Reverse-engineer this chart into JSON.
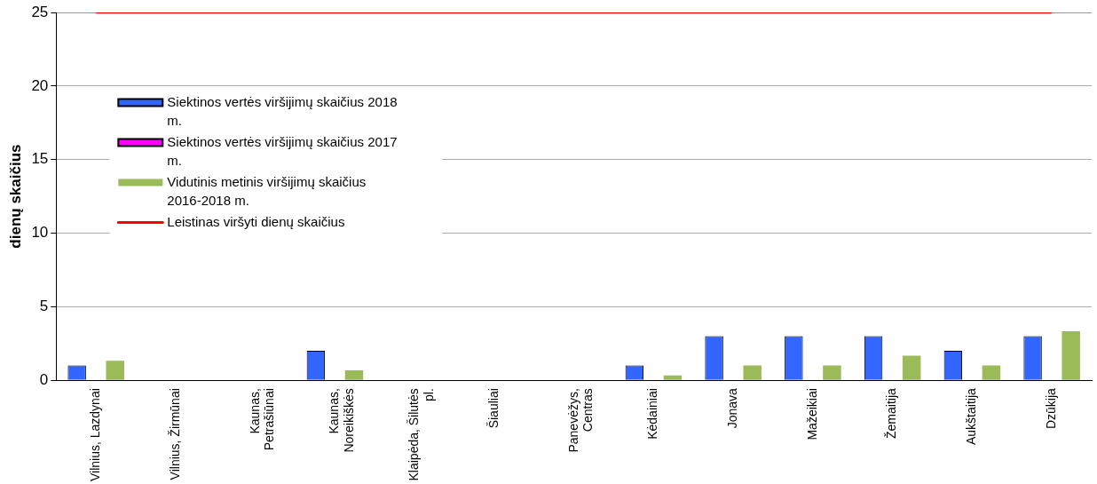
{
  "chart_data": {
    "type": "bar",
    "ylabel": "dienų skaičius",
    "categories": [
      "Vilnius, Lazdynai",
      "Vilnius, Žirmūnai",
      "Kaunas, Petrašiūnai",
      "Kaunas, Noreikiškės",
      "Klaipėda, Šilutės pl.",
      "Šiauliai",
      "Panevėžys, Centras",
      "Kėdainiai",
      "Jonava",
      "Mažeikiai",
      "Žemaitija",
      "Aukštaitija",
      "Dzūkija"
    ],
    "series": [
      {
        "name": "Siektinos vertės viršijimų skaičius 2018 m.",
        "color": "#3366ff",
        "values": [
          1,
          0,
          0,
          2,
          0,
          0,
          0,
          1,
          3,
          3,
          3,
          2,
          3
        ]
      },
      {
        "name": "Siektinos vertės viršijimų skaičius 2017 m.",
        "color": "#ff00ff",
        "values": [
          0,
          0,
          0,
          0,
          0,
          0,
          0,
          0,
          0,
          0,
          0,
          0,
          0
        ]
      },
      {
        "name": "Vidutinis metinis viršijimų skaičius 2016-2018 m.",
        "color": "#9bbb59",
        "values": [
          1.33,
          0,
          0,
          0.67,
          0,
          0,
          0,
          0.33,
          1,
          1,
          1.67,
          1,
          3.33
        ]
      },
      {
        "name": "Leistinas viršyti dienų skaičius",
        "type": "line",
        "color": "#ff0000",
        "values": [
          25,
          25,
          25,
          25,
          25,
          25,
          25,
          25,
          25,
          25,
          25,
          25,
          25
        ]
      }
    ],
    "ylim": [
      0,
      25
    ],
    "yticks": [
      0,
      5,
      10,
      15,
      20,
      25
    ],
    "grid": "y",
    "legend": "left"
  }
}
